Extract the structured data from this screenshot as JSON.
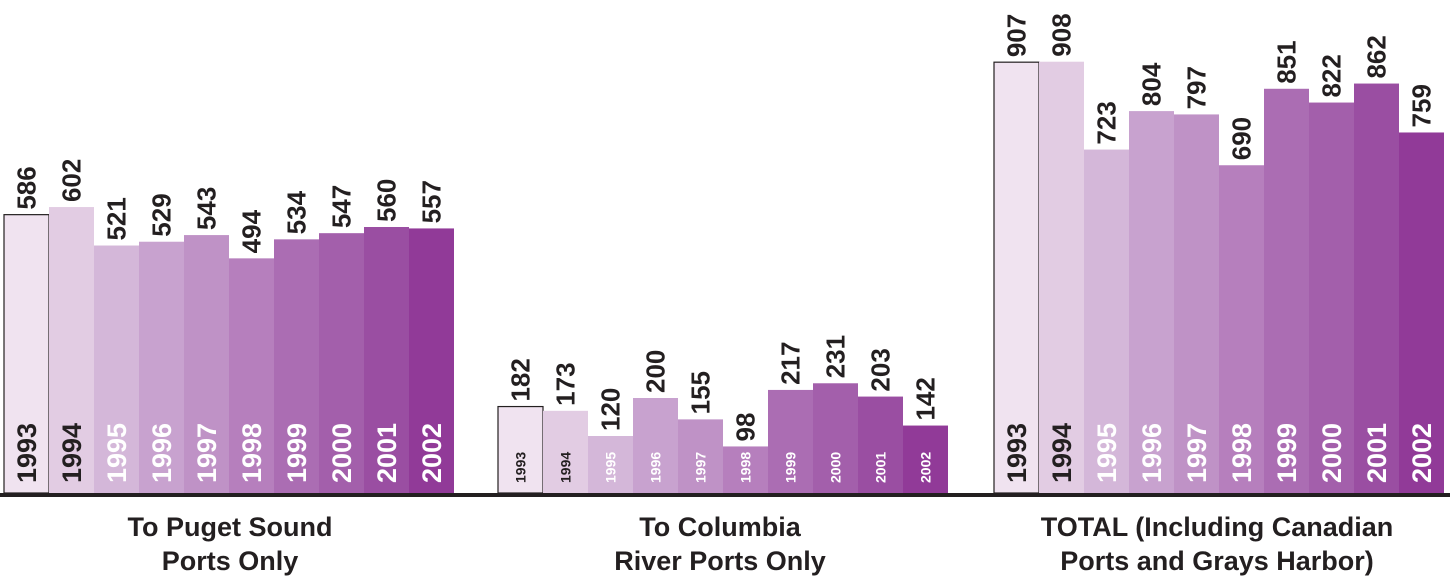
{
  "chart_data": [
    {
      "type": "bar",
      "categories": [
        "1993",
        "1994",
        "1995",
        "1996",
        "1997",
        "1998",
        "1999",
        "2000",
        "2001",
        "2002"
      ],
      "values": [
        586,
        602,
        521,
        529,
        543,
        494,
        534,
        547,
        560,
        557
      ],
      "title_lines": [
        "To Puget Sound",
        "Ports Only"
      ],
      "ylim": [
        0,
        1000
      ]
    },
    {
      "type": "bar",
      "categories": [
        "1993",
        "1994",
        "1995",
        "1996",
        "1997",
        "1998",
        "1999",
        "2000",
        "2001",
        "2002"
      ],
      "values": [
        182,
        173,
        120,
        200,
        155,
        98,
        217,
        231,
        203,
        142
      ],
      "title_lines": [
        "To Columbia",
        "River Ports Only"
      ],
      "ylim": [
        0,
        1000
      ]
    },
    {
      "type": "bar",
      "categories": [
        "1993",
        "1994",
        "1995",
        "1996",
        "1997",
        "1998",
        "1999",
        "2000",
        "2001",
        "2002"
      ],
      "values": [
        907,
        908,
        723,
        804,
        797,
        690,
        851,
        822,
        862,
        759
      ],
      "title_lines": [
        "TOTAL (Including Canadian",
        "Ports and Grays Harbor)"
      ],
      "ylim": [
        0,
        1000
      ]
    }
  ],
  "colors": {
    "bars": [
      "#f0e3f0",
      "#e2cce3",
      "#d4b7d9",
      "#c8a2cf",
      "#bf92c6",
      "#b67fbd",
      "#ab6db3",
      "#a35fab",
      "#9a4ea2",
      "#913a98"
    ],
    "year_text_dark": "#231f20",
    "year_text_light": "#ffffff",
    "baseline": "#231f20"
  }
}
